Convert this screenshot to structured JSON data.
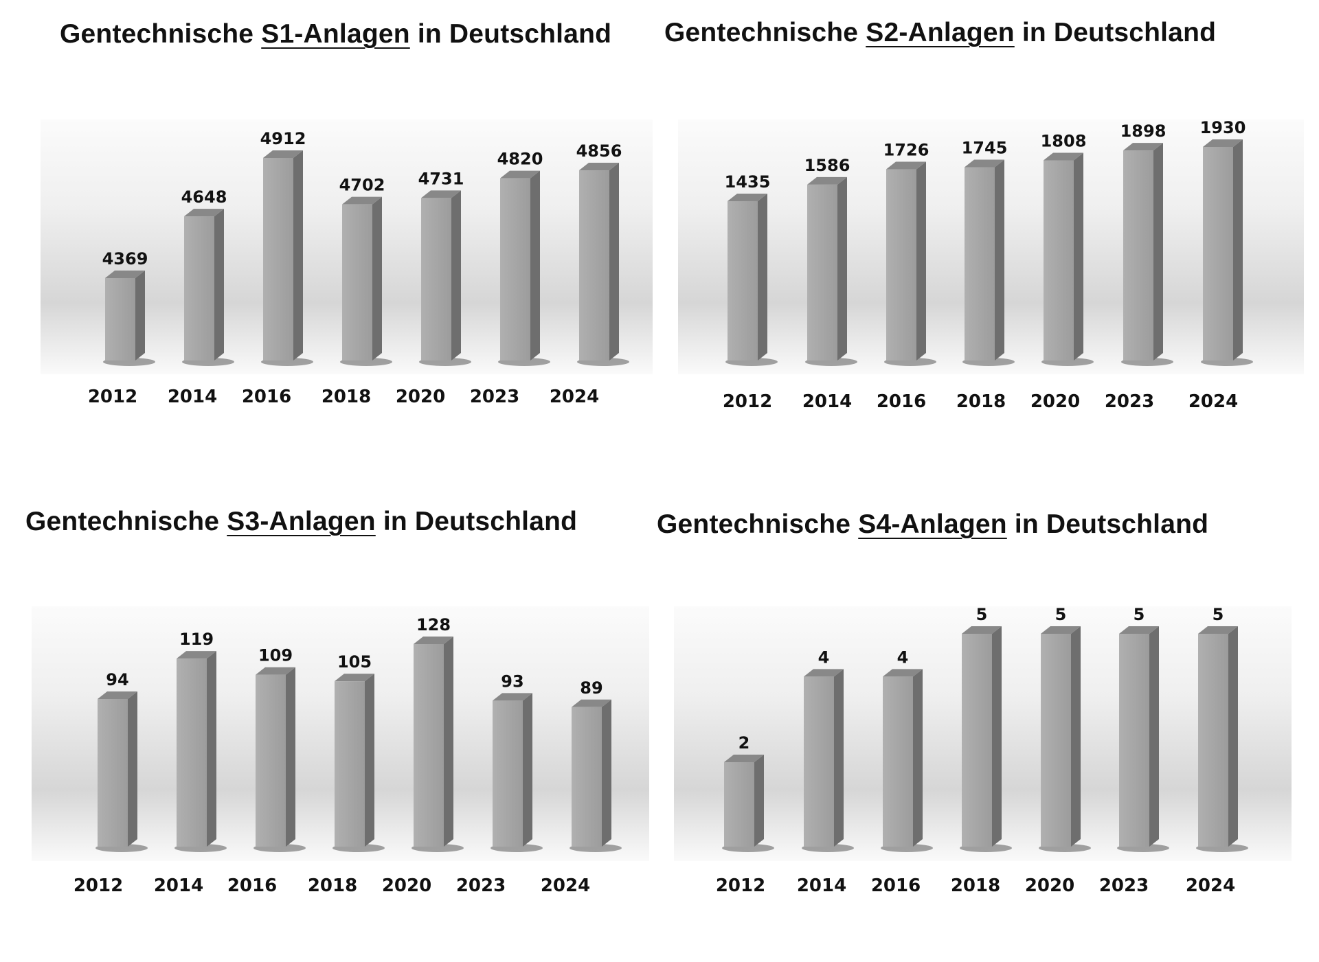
{
  "charts": [
    {
      "title_pre": "Gentechnische ",
      "title_key": "S1-Anlagen",
      "title_post": " in Deutschland"
    },
    {
      "title_pre": "Gentechnische ",
      "title_key": "S2-Anlagen",
      "title_post": " in Deutschland"
    },
    {
      "title_pre": "Gentechnische ",
      "title_key": "S3-Anlagen",
      "title_post": " in Deutschland"
    },
    {
      "title_pre": "Gentechnische ",
      "title_key": "S4-Anlagen",
      "title_post": " in Deutschland"
    }
  ],
  "colors": {
    "bar_front": "#a6a6a6",
    "bar_side": "#6e6e6e",
    "bar_top": "#888888",
    "plot_bg_top": "#fbfbfb",
    "plot_bg_mid": "#d6d6d6"
  },
  "chart_data": [
    {
      "type": "bar",
      "title": "Gentechnische S1-Anlagen in Deutschland",
      "categories": [
        "2012",
        "2014",
        "2016",
        "2018",
        "2020",
        "2023",
        "2024"
      ],
      "values": [
        4369,
        4648,
        4912,
        4702,
        4731,
        4820,
        4856
      ],
      "xlabel": "",
      "ylabel": "",
      "grid": false,
      "legend": "none"
    },
    {
      "type": "bar",
      "title": "Gentechnische S2-Anlagen in Deutschland",
      "categories": [
        "2012",
        "2014",
        "2016",
        "2018",
        "2020",
        "2023",
        "2024"
      ],
      "values": [
        1435,
        1586,
        1726,
        1745,
        1808,
        1898,
        1930
      ],
      "xlabel": "",
      "ylabel": "",
      "grid": false,
      "legend": "none"
    },
    {
      "type": "bar",
      "title": "Gentechnische S3-Anlagen in Deutschland",
      "categories": [
        "2012",
        "2014",
        "2016",
        "2018",
        "2020",
        "2023",
        "2024"
      ],
      "values": [
        94,
        119,
        109,
        105,
        128,
        93,
        89
      ],
      "xlabel": "",
      "ylabel": "",
      "grid": false,
      "legend": "none"
    },
    {
      "type": "bar",
      "title": "Gentechnische S4-Anlagen in Deutschland",
      "categories": [
        "2012",
        "2014",
        "2016",
        "2018",
        "2020",
        "2023",
        "2024"
      ],
      "values": [
        2,
        4,
        4,
        5,
        5,
        5,
        5
      ],
      "xlabel": "",
      "ylabel": "",
      "grid": false,
      "legend": "none"
    }
  ]
}
